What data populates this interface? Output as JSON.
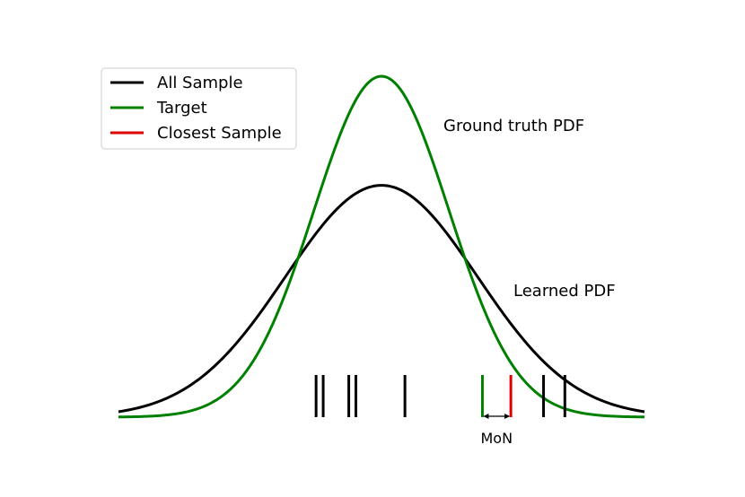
{
  "chart_data": {
    "type": "line",
    "title": "",
    "xlabel": "",
    "ylabel": "",
    "axes_visible": false,
    "grid": false,
    "legend_position": "top-left",
    "xlim": [
      -3.7,
      3.7
    ],
    "ylim": [
      0,
      1
    ],
    "series": [
      {
        "name": "",
        "color": "#000000",
        "mean": 0,
        "std": 1.35,
        "peak": 0.68
      },
      {
        "name": "",
        "color": "#008000",
        "mean": 0,
        "std": 0.95,
        "peak": 1.0
      }
    ],
    "curve_labels": [
      {
        "text": "Ground truth PDF",
        "series_index": 1
      },
      {
        "text": "Learned PDF",
        "series_index": 0
      }
    ],
    "legend": [
      {
        "label": "All Sample",
        "color": "#000000"
      },
      {
        "label": "Target",
        "color": "#008000"
      },
      {
        "label": "Closest Sample",
        "color": "#e00000"
      }
    ],
    "samples": [
      {
        "x": -0.92,
        "color": "#000000",
        "kind": "sample"
      },
      {
        "x": -0.82,
        "color": "#000000",
        "kind": "sample"
      },
      {
        "x": -0.46,
        "color": "#000000",
        "kind": "sample"
      },
      {
        "x": -0.36,
        "color": "#000000",
        "kind": "sample"
      },
      {
        "x": 0.33,
        "color": "#000000",
        "kind": "sample"
      },
      {
        "x": 1.42,
        "color": "#008000",
        "kind": "target"
      },
      {
        "x": 1.82,
        "color": "#e00000",
        "kind": "closest"
      },
      {
        "x": 2.28,
        "color": "#000000",
        "kind": "sample"
      },
      {
        "x": 2.58,
        "color": "#000000",
        "kind": "sample"
      }
    ],
    "annotation": {
      "text": "MoN",
      "from_x": 1.42,
      "to_x": 1.82
    }
  }
}
